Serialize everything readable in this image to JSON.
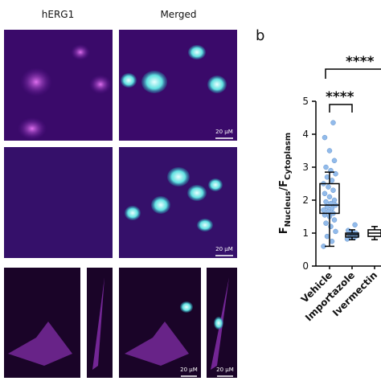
{
  "panel_label": "b",
  "column_headers": [
    "hERG1",
    "Merged"
  ],
  "scale_bars": [
    "20 μM",
    "20 μM",
    "20 μM",
    "20 μM"
  ],
  "chart_data": {
    "type": "box",
    "ylabel": {
      "main": "F",
      "sub1": "Nucleus",
      "sep": "/F",
      "sub2": "Cytoplasm"
    },
    "categories": [
      "Vehicle",
      "Importazole",
      "Ivermectin"
    ],
    "ylim": [
      0,
      5
    ],
    "yticks": [
      0,
      1,
      2,
      3,
      4,
      5
    ],
    "color": "#7fb0e8",
    "box_color": "#000000",
    "boxes": [
      {
        "whislo": 0.6,
        "q1": 1.6,
        "median": 1.85,
        "q3": 2.5,
        "whishi": 2.85,
        "points": [
          0.6,
          0.75,
          0.9,
          1.05,
          1.2,
          1.3,
          1.4,
          1.5,
          1.55,
          1.6,
          1.65,
          1.7,
          1.75,
          1.8,
          1.85,
          1.9,
          1.95,
          2.0,
          2.1,
          2.2,
          2.3,
          2.4,
          2.5,
          2.6,
          2.7,
          2.8,
          2.9,
          3.0,
          3.2,
          3.5,
          3.9,
          4.35
        ]
      },
      {
        "whislo": 0.8,
        "q1": 0.88,
        "median": 0.95,
        "q3": 1.0,
        "whishi": 1.1,
        "points": [
          0.82,
          0.86,
          0.9,
          0.92,
          0.95,
          0.97,
          1.0,
          1.03,
          1.08,
          1.25
        ]
      },
      {
        "whislo": 0.8,
        "q1": 0.9,
        "median": 1.0,
        "q3": 1.1,
        "whishi": 1.2,
        "points": []
      }
    ],
    "annotations": [
      "****",
      "****"
    ]
  }
}
